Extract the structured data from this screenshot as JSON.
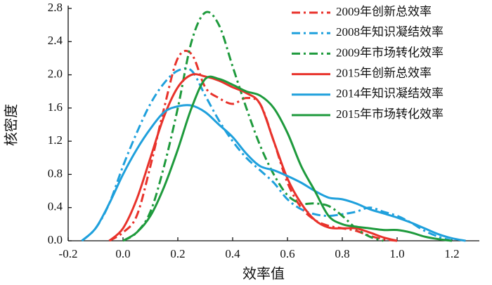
{
  "chart_data": {
    "type": "line",
    "x_label": "效率值",
    "y_label": "核密度",
    "x": [
      -0.15,
      -0.1,
      -0.05,
      0,
      0.05,
      0.1,
      0.15,
      0.2,
      0.25,
      0.3,
      0.35,
      0.4,
      0.45,
      0.5,
      0.55,
      0.6,
      0.65,
      0.7,
      0.75,
      0.8,
      0.85,
      0.9,
      0.95,
      1.0,
      1.05,
      1.1,
      1.15,
      1.2,
      1.25
    ],
    "series": [
      {
        "name": "2009年创新总效率",
        "color": "#e8322b",
        "style": "dashdot",
        "values": [
          null,
          null,
          0,
          0.1,
          0.3,
          0.9,
          1.6,
          2.2,
          2.25,
          1.85,
          1.72,
          1.65,
          1.72,
          1.65,
          1.2,
          0.7,
          0.4,
          0.25,
          0.18,
          0.15,
          0.12,
          0.06,
          0.02,
          0,
          null,
          null,
          null,
          null,
          null
        ]
      },
      {
        "name": "2008年知识凝结效率",
        "color": "#1fa0dc",
        "style": "dashdot",
        "values": [
          0,
          0.15,
          0.45,
          0.9,
          1.3,
          1.65,
          1.9,
          2.05,
          2.05,
          1.75,
          1.45,
          1.2,
          1.0,
          0.85,
          0.7,
          0.5,
          0.38,
          0.32,
          0.3,
          0.32,
          0.35,
          0.4,
          0.35,
          0.3,
          0.22,
          0.12,
          0.05,
          0,
          null
        ]
      },
      {
        "name": "2009年市场转化效率",
        "color": "#1e9a3c",
        "style": "dashdot",
        "values": [
          null,
          null,
          null,
          0,
          0.1,
          0.35,
          0.9,
          1.6,
          2.4,
          2.75,
          2.6,
          2.1,
          1.6,
          1.15,
          0.8,
          0.55,
          0.45,
          0.45,
          0.42,
          0.3,
          0.15,
          0.05,
          0,
          null,
          null,
          null,
          null,
          null,
          null
        ]
      },
      {
        "name": "2015年创新总效率",
        "color": "#e8322b",
        "style": "solid",
        "values": [
          null,
          null,
          0,
          0.15,
          0.5,
          1.0,
          1.5,
          1.85,
          2.0,
          1.98,
          1.93,
          1.85,
          1.78,
          1.65,
          1.2,
          0.75,
          0.45,
          0.25,
          0.16,
          0.15,
          0.15,
          0.1,
          0.04,
          0,
          null,
          null,
          null,
          null,
          null
        ]
      },
      {
        "name": "2014年知识凝结效率",
        "color": "#1fa0dc",
        "style": "solid",
        "values": [
          0,
          0.15,
          0.45,
          0.8,
          1.1,
          1.35,
          1.55,
          1.62,
          1.63,
          1.55,
          1.4,
          1.25,
          1.05,
          0.9,
          0.85,
          0.78,
          0.7,
          0.6,
          0.52,
          0.5,
          0.45,
          0.38,
          0.33,
          0.28,
          0.22,
          0.15,
          0.08,
          0.03,
          0
        ]
      },
      {
        "name": "2015年市场转化效率",
        "color": "#1e9a3c",
        "style": "solid",
        "values": [
          null,
          null,
          null,
          0,
          0.1,
          0.3,
          0.65,
          1.1,
          1.6,
          1.95,
          1.95,
          1.88,
          1.8,
          1.75,
          1.6,
          1.3,
          0.9,
          0.6,
          0.3,
          0.2,
          0.17,
          0.15,
          0.13,
          0.13,
          0.1,
          0.05,
          0.02,
          0,
          null
        ]
      }
    ],
    "xlim": [
      -0.2,
      1.3
    ],
    "xticks": [
      -0.2,
      {
        "value": 0,
        "label": "0.0"
      },
      0.2,
      0.4,
      0.6,
      0.8,
      {
        "value": 1,
        "label": "1.0"
      },
      1.2
    ],
    "ylim": [
      0,
      2.8
    ],
    "yticks": [
      {
        "value": 0,
        "label": "0.0"
      },
      0.4,
      0.8,
      1.2,
      1.6,
      {
        "value": 2,
        "label": "2.0"
      },
      2.4,
      2.8
    ],
    "legend": "upper-right"
  }
}
